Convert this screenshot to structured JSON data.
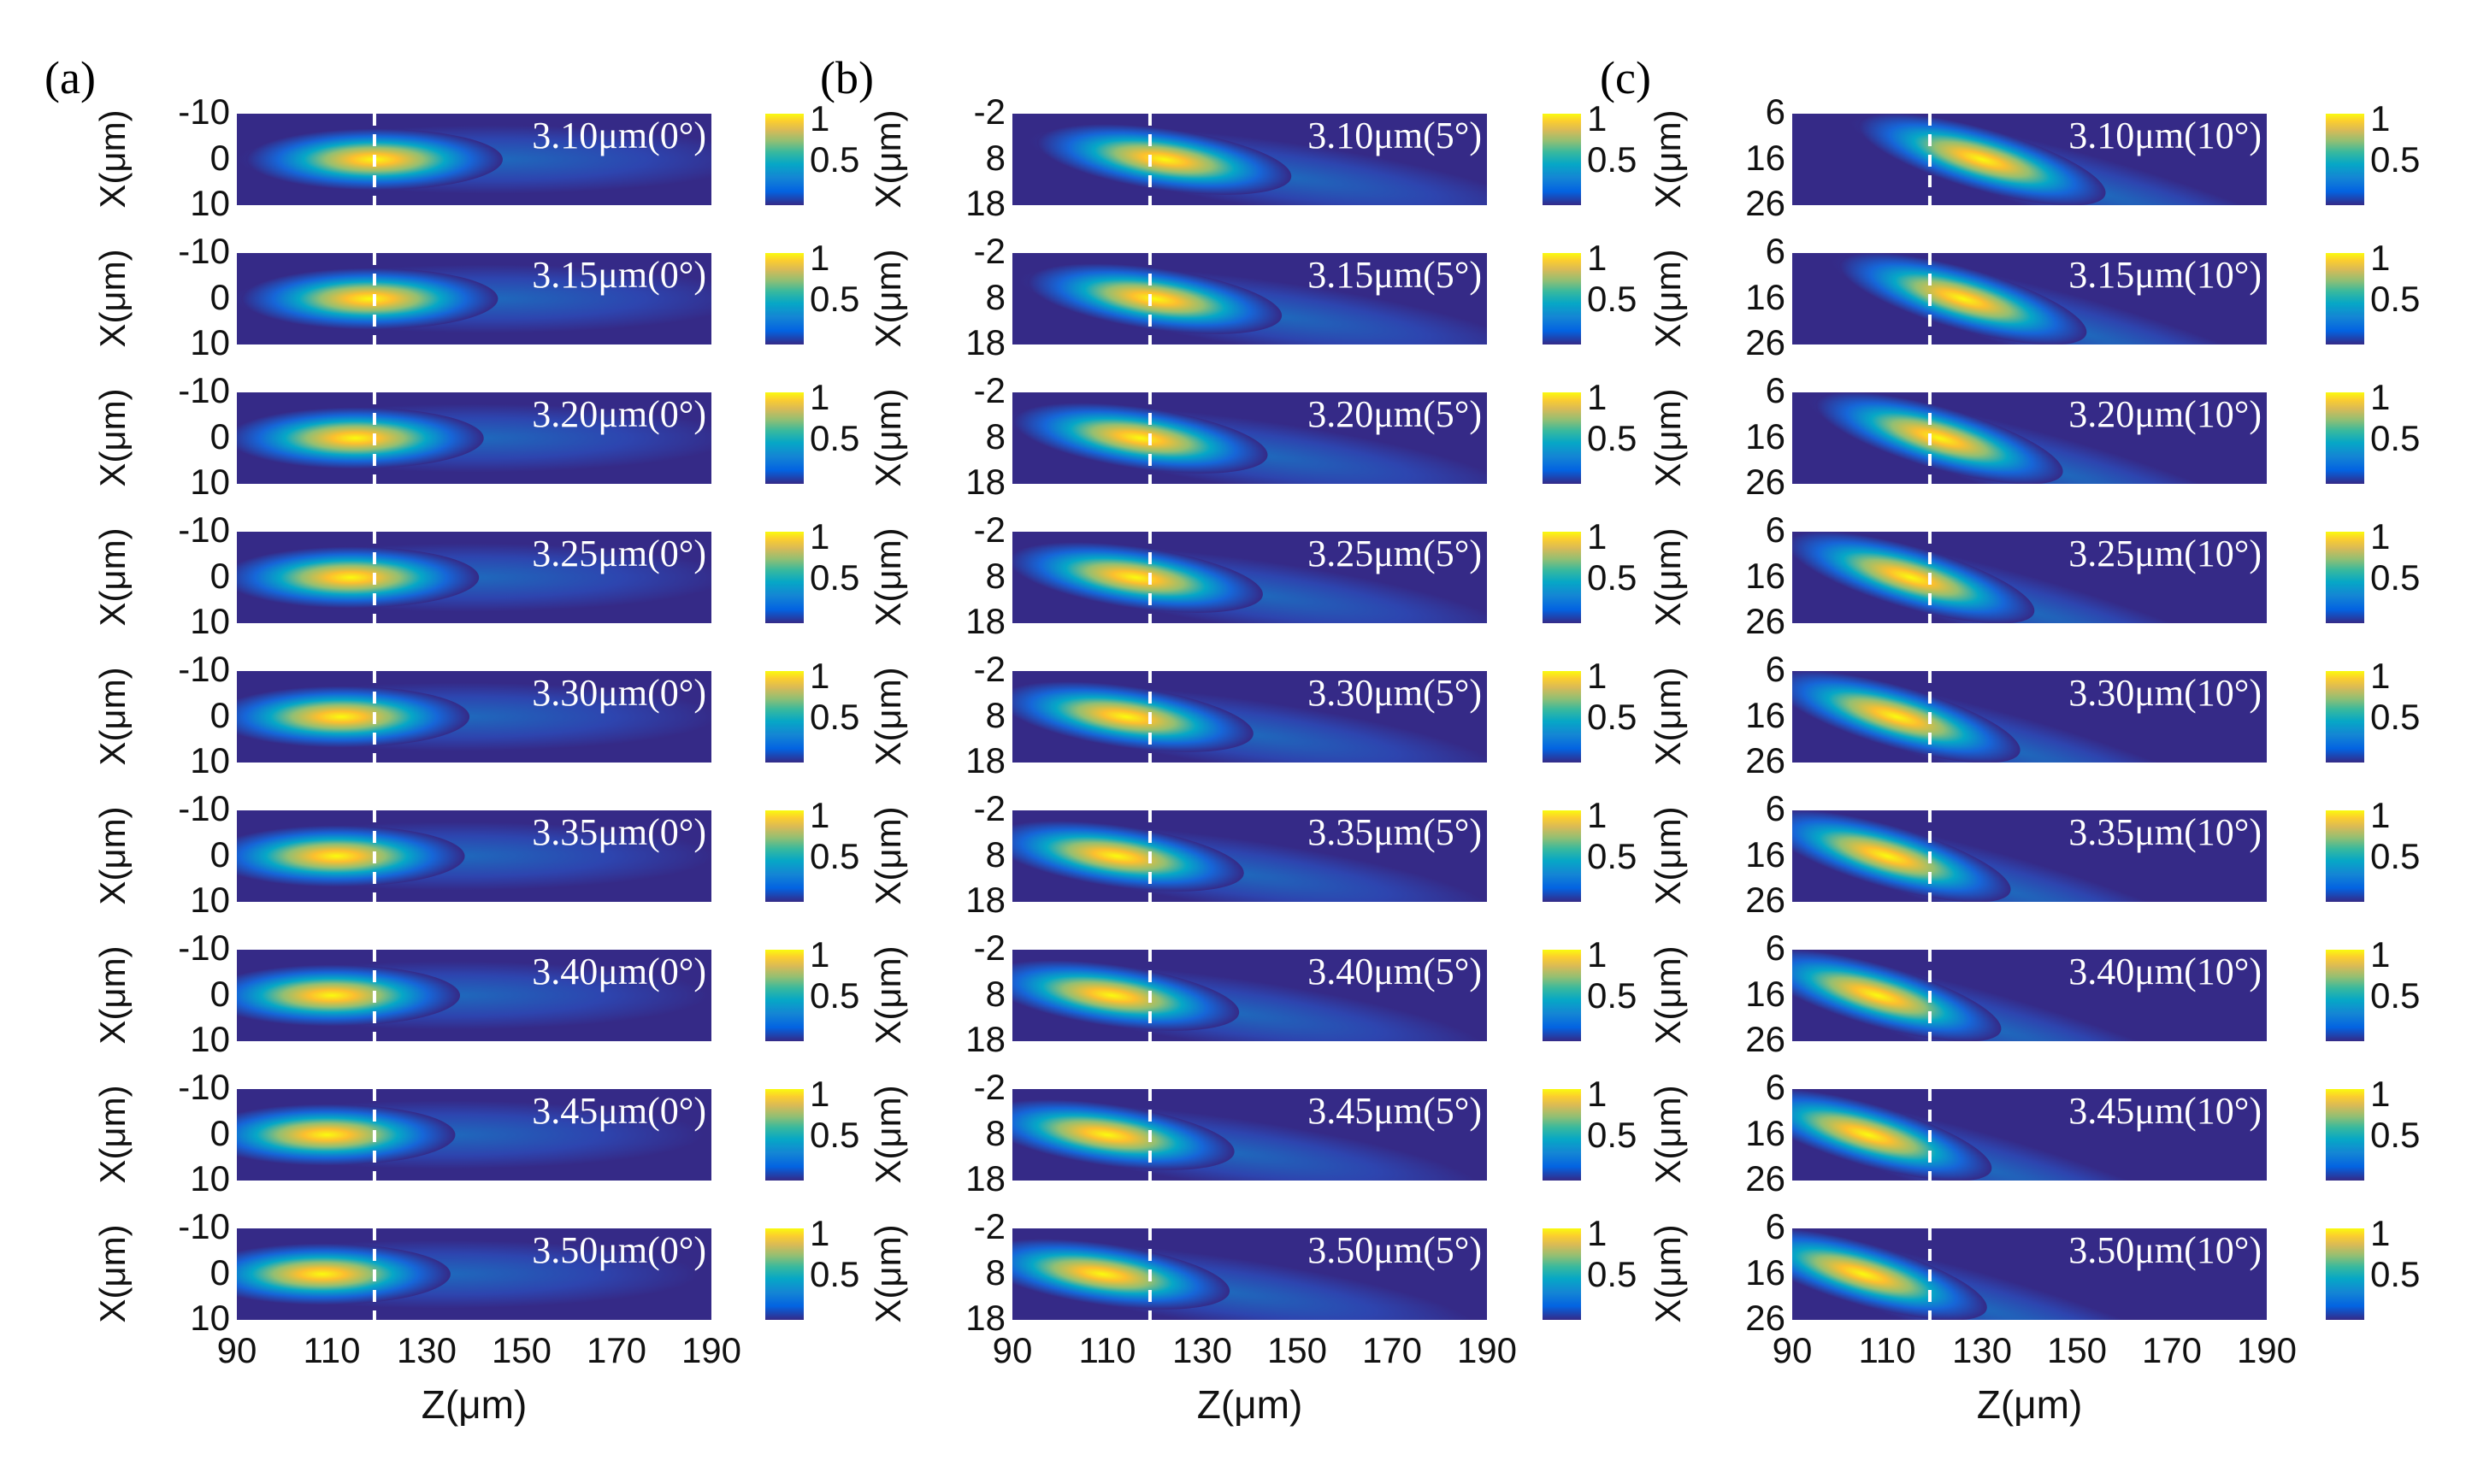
{
  "chart_data": {
    "type": "heatmap",
    "description_title": "Normalized field intensity maps, X vs Z",
    "xlabel": "Z(μm)",
    "ylabel": "X(μm)",
    "xlim": [
      90,
      190
    ],
    "xticks": [
      "90",
      "110",
      "130",
      "150",
      "170",
      "190"
    ],
    "dashed_line_z": 119,
    "colorbar": {
      "range": [
        0,
        1
      ],
      "ticks": [
        "1",
        "0.5"
      ]
    },
    "panels": [
      {
        "label": "(a)",
        "angle": 0,
        "yticks": [
          "-10",
          "0",
          "10"
        ],
        "rows": [
          {
            "title": "3.10μm(0°)",
            "peak_z": 119
          },
          {
            "title": "3.15μm(0°)",
            "peak_z": 118
          },
          {
            "title": "3.20μm(0°)",
            "peak_z": 115
          },
          {
            "title": "3.25μm(0°)",
            "peak_z": 114
          },
          {
            "title": "3.30μm(0°)",
            "peak_z": 112
          },
          {
            "title": "3.35μm(0°)",
            "peak_z": 111
          },
          {
            "title": "3.40μm(0°)",
            "peak_z": 110
          },
          {
            "title": "3.45μm(0°)",
            "peak_z": 109
          },
          {
            "title": "3.50μm(0°)",
            "peak_z": 108
          }
        ]
      },
      {
        "label": "(b)",
        "angle": 5,
        "yticks": [
          "-2",
          "8",
          "18"
        ],
        "rows": [
          {
            "title": "3.10μm(5°)",
            "peak_z": 122
          },
          {
            "title": "3.15μm(5°)",
            "peak_z": 120
          },
          {
            "title": "3.20μm(5°)",
            "peak_z": 117
          },
          {
            "title": "3.25μm(5°)",
            "peak_z": 116
          },
          {
            "title": "3.30μm(5°)",
            "peak_z": 114
          },
          {
            "title": "3.35μm(5°)",
            "peak_z": 112
          },
          {
            "title": "3.40μm(5°)",
            "peak_z": 111
          },
          {
            "title": "3.45μm(5°)",
            "peak_z": 110
          },
          {
            "title": "3.50μm(5°)",
            "peak_z": 109
          }
        ]
      },
      {
        "label": "(c)",
        "angle": 10,
        "yticks": [
          "6",
          "16",
          "26"
        ],
        "rows": [
          {
            "title": "3.10μm(10°)",
            "peak_z": 130
          },
          {
            "title": "3.15μm(10°)",
            "peak_z": 126
          },
          {
            "title": "3.20μm(10°)",
            "peak_z": 121
          },
          {
            "title": "3.25μm(10°)",
            "peak_z": 115
          },
          {
            "title": "3.30μm(10°)",
            "peak_z": 112
          },
          {
            "title": "3.35μm(10°)",
            "peak_z": 110
          },
          {
            "title": "3.40μm(10°)",
            "peak_z": 108
          },
          {
            "title": "3.45μm(10°)",
            "peak_z": 106
          },
          {
            "title": "3.50μm(10°)",
            "peak_z": 105
          }
        ]
      }
    ]
  },
  "colors": {
    "background": "#352a87",
    "peak": "#f9fb0e",
    "dash": "#ffffff"
  }
}
